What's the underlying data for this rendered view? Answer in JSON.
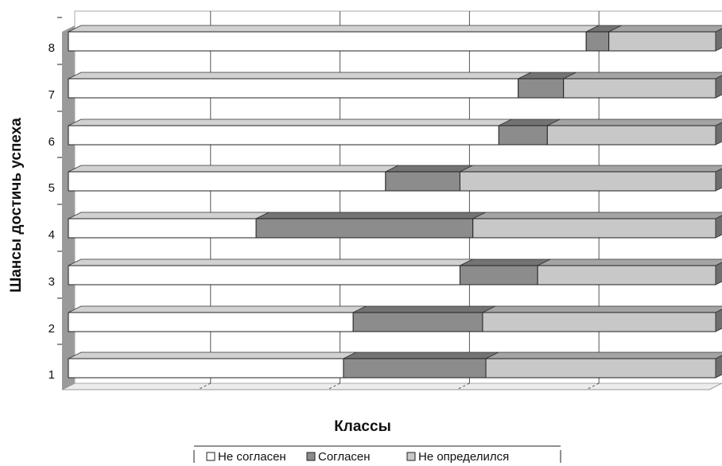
{
  "chart_data": {
    "type": "bar",
    "orientation": "horizontal",
    "stacked": "100%",
    "style": "3d",
    "categories": [
      "1",
      "2",
      "3",
      "4",
      "5",
      "6",
      "7",
      "8"
    ],
    "series": [
      {
        "name": "Не согласен",
        "color": "#ffffff",
        "values": [
          42.5,
          44.0,
          60.5,
          29.0,
          49.0,
          66.5,
          69.5,
          80.0
        ]
      },
      {
        "name": "Согласен",
        "color": "#8c8c8c",
        "values": [
          22.0,
          20.0,
          12.0,
          33.5,
          11.5,
          7.5,
          7.0,
          3.5
        ]
      },
      {
        "name": "Не определился",
        "color": "#c8c8c8",
        "values": [
          35.5,
          36.0,
          27.5,
          37.5,
          39.5,
          26.0,
          23.5,
          16.5
        ]
      }
    ],
    "xlabel": "Классы",
    "ylabel": "Шансы достичь успеха",
    "xlim": [
      0,
      100
    ],
    "grid": "vertical",
    "legend_position": "bottom"
  }
}
